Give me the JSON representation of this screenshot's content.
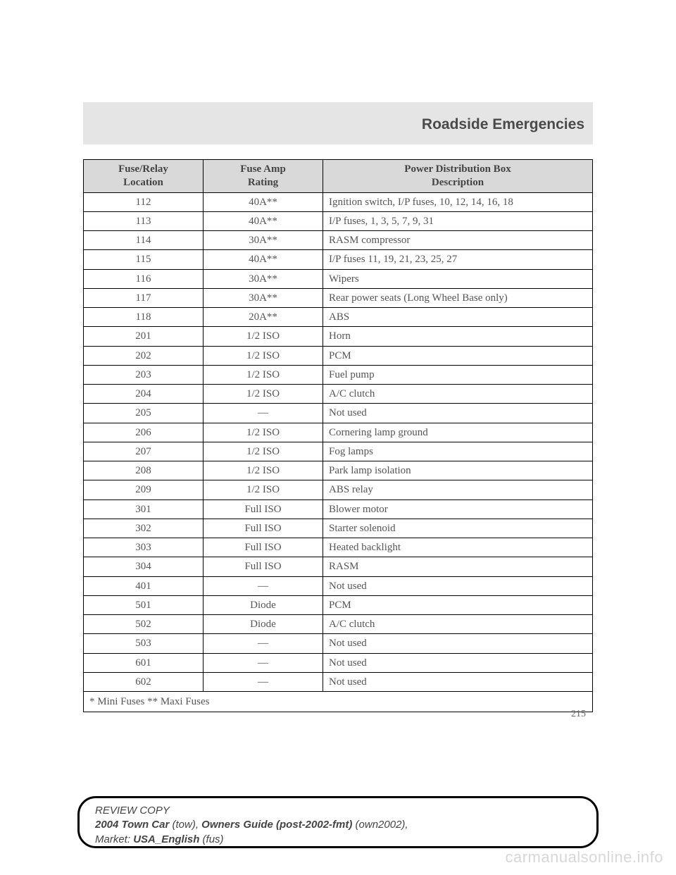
{
  "sectionTitle": "Roadside Emergencies",
  "table": {
    "headers": {
      "col1_line1": "Fuse/Relay",
      "col1_line2": "Location",
      "col2_line1": "Fuse Amp",
      "col2_line2": "Rating",
      "col3_line1": "Power Distribution Box",
      "col3_line2": "Description"
    },
    "rows": [
      {
        "loc": "112",
        "amp": "40A**",
        "desc": "Ignition switch, I/P fuses, 10, 12, 14, 16, 18"
      },
      {
        "loc": "113",
        "amp": "40A**",
        "desc": "I/P fuses, 1, 3, 5, 7, 9, 31"
      },
      {
        "loc": "114",
        "amp": "30A**",
        "desc": "RASM compressor"
      },
      {
        "loc": "115",
        "amp": "40A**",
        "desc": "I/P fuses 11, 19, 21, 23, 25, 27"
      },
      {
        "loc": "116",
        "amp": "30A**",
        "desc": "Wipers"
      },
      {
        "loc": "117",
        "amp": "30A**",
        "desc": "Rear power seats (Long Wheel Base only)"
      },
      {
        "loc": "118",
        "amp": "20A**",
        "desc": "ABS"
      },
      {
        "loc": "201",
        "amp": "1/2 ISO",
        "desc": "Horn"
      },
      {
        "loc": "202",
        "amp": "1/2 ISO",
        "desc": "PCM"
      },
      {
        "loc": "203",
        "amp": "1/2 ISO",
        "desc": "Fuel pump"
      },
      {
        "loc": "204",
        "amp": "1/2 ISO",
        "desc": "A/C clutch"
      },
      {
        "loc": "205",
        "amp": "—",
        "desc": "Not used"
      },
      {
        "loc": "206",
        "amp": "1/2 ISO",
        "desc": "Cornering lamp ground"
      },
      {
        "loc": "207",
        "amp": "1/2 ISO",
        "desc": "Fog lamps"
      },
      {
        "loc": "208",
        "amp": "1/2 ISO",
        "desc": "Park lamp isolation"
      },
      {
        "loc": "209",
        "amp": "1/2 ISO",
        "desc": "ABS relay"
      },
      {
        "loc": "301",
        "amp": "Full ISO",
        "desc": "Blower motor"
      },
      {
        "loc": "302",
        "amp": "Full ISO",
        "desc": "Starter solenoid"
      },
      {
        "loc": "303",
        "amp": "Full ISO",
        "desc": "Heated backlight"
      },
      {
        "loc": "304",
        "amp": "Full ISO",
        "desc": "RASM"
      },
      {
        "loc": "401",
        "amp": "—",
        "desc": "Not used"
      },
      {
        "loc": "501",
        "amp": "Diode",
        "desc": "PCM"
      },
      {
        "loc": "502",
        "amp": "Diode",
        "desc": "A/C clutch"
      },
      {
        "loc": "503",
        "amp": "—",
        "desc": "Not used"
      },
      {
        "loc": "601",
        "amp": "—",
        "desc": "Not used"
      },
      {
        "loc": "602",
        "amp": "—",
        "desc": "Not used"
      }
    ],
    "footnote": "* Mini Fuses ** Maxi Fuses"
  },
  "pageNumber": "215",
  "footer": {
    "line1": "REVIEW COPY",
    "line2_bold1": "2004 Town Car",
    "line2_i1": " (tow)",
    "line2_sep": ", ",
    "line2_bold2": "Owners Guide (post-2002-fmt)",
    "line2_i2": " (own2002)",
    "line2_end": ",",
    "line3_label": "Market: ",
    "line3_bold": "USA_English",
    "line3_i": " (fus)"
  },
  "watermark": "carmanualsonline.info"
}
